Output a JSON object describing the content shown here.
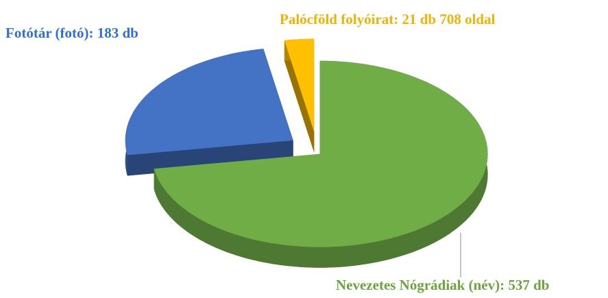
{
  "chart_data": {
    "type": "pie",
    "values": [
      537,
      183,
      21
    ],
    "value_labels": [
      "Nevezetes Nógrádiak (név): 537 db",
      "Fotótár (fotó): 183 db",
      "Palócföld folyóirat: 21 db 708 oldal"
    ],
    "colors": [
      "#70ad47",
      "#4472c4",
      "#ffc000"
    ],
    "label_colors": [
      "#6aa63c",
      "#2f6fd6",
      "#f2b200"
    ]
  }
}
